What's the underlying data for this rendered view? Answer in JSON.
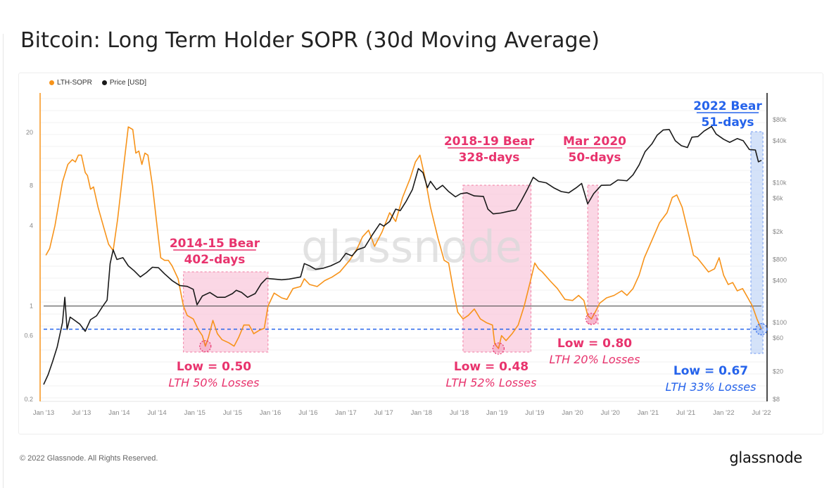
{
  "page": {
    "title": "Bitcoin: Long Term Holder SOPR (30d Moving Average)",
    "footer_copyright": "© 2022 Glassnode. All Rights Reserved.",
    "footer_logo": "glassnode",
    "watermark": "glassnode"
  },
  "colors": {
    "sopr": "#f7931a",
    "price": "#1a1a1a",
    "bear_pink": "#e8336d",
    "bear_blue": "#2563eb",
    "pink_fill": "#f9c6da",
    "blue_fill": "#c6d8f7"
  },
  "chart_data": {
    "type": "line",
    "title": "Bitcoin: Long Term Holder SOPR (30d Moving Average)",
    "legend": [
      {
        "name": "LTH-SOPR",
        "color": "#f7931a"
      },
      {
        "name": "Price [USD]",
        "color": "#1a1a1a"
      }
    ],
    "legend_position": "top-left",
    "x_ticks": [
      "Jan '13",
      "Jul '13",
      "Jan '14",
      "Jul '14",
      "Jan '15",
      "Jul '15",
      "Jan '16",
      "Jul '16",
      "Jan '17",
      "Jul '17",
      "Jan '18",
      "Jul '18",
      "Jan '19",
      "Jul '19",
      "Jan '20",
      "Jul '20",
      "Jan '21",
      "Jul '21",
      "Jan '22",
      "Jul '22"
    ],
    "x_range": [
      2013.0,
      2022.5
    ],
    "y_left": {
      "label": "LTH-SOPR",
      "scale": "log",
      "ticks": [
        "20",
        "8",
        "4",
        "1",
        "0.6",
        "0.2"
      ],
      "tick_values": [
        20,
        8,
        4,
        1,
        0.6,
        0.2
      ],
      "range": [
        0.2,
        20
      ]
    },
    "y_right": {
      "label": "Price [USD]",
      "scale": "log",
      "ticks": [
        "$80k",
        "$40k",
        "$10k",
        "$6k",
        "$2k",
        "$800",
        "$400",
        "$100",
        "$60",
        "$20",
        "$8"
      ],
      "tick_values": [
        80000,
        40000,
        10000,
        6000,
        2000,
        800,
        400,
        100,
        60,
        20,
        8
      ],
      "range": [
        8,
        80000
      ]
    },
    "grid": true,
    "reference_lines": [
      {
        "name": "break-even",
        "axis": "left",
        "value": 1.0,
        "style": "solid",
        "color": "#555555"
      },
      {
        "name": "current-low",
        "axis": "left",
        "value": 0.67,
        "style": "dashed",
        "color": "#2563eb"
      }
    ],
    "series": [
      {
        "name": "LTH-SOPR",
        "axis": "left",
        "points": [
          [
            2013.03,
            2.4
          ],
          [
            2013.08,
            2.7
          ],
          [
            2013.15,
            4.0
          ],
          [
            2013.25,
            8.5
          ],
          [
            2013.32,
            11.5
          ],
          [
            2013.38,
            12.5
          ],
          [
            2013.42,
            12.0
          ],
          [
            2013.46,
            13.5
          ],
          [
            2013.5,
            13.5
          ],
          [
            2013.55,
            10.0
          ],
          [
            2013.58,
            9.5
          ],
          [
            2013.62,
            7.5
          ],
          [
            2013.66,
            7.8
          ],
          [
            2013.72,
            5.5
          ],
          [
            2013.8,
            3.8
          ],
          [
            2013.86,
            2.9
          ],
          [
            2013.92,
            2.6
          ],
          [
            2013.98,
            4.5
          ],
          [
            2014.05,
            10.0
          ],
          [
            2014.12,
            22.0
          ],
          [
            2014.18,
            21.0
          ],
          [
            2014.22,
            14.0
          ],
          [
            2014.26,
            14.5
          ],
          [
            2014.3,
            11.5
          ],
          [
            2014.34,
            14.0
          ],
          [
            2014.38,
            13.5
          ],
          [
            2014.44,
            8.0
          ],
          [
            2014.5,
            4.0
          ],
          [
            2014.55,
            2.3
          ],
          [
            2014.6,
            2.2
          ],
          [
            2014.65,
            2.2
          ],
          [
            2014.7,
            2.0
          ],
          [
            2014.78,
            1.6
          ],
          [
            2014.85,
            1.0
          ],
          [
            2014.9,
            0.85
          ],
          [
            2014.98,
            0.8
          ],
          [
            2015.05,
            0.66
          ],
          [
            2015.1,
            0.6
          ],
          [
            2015.14,
            0.5
          ],
          [
            2015.18,
            0.58
          ],
          [
            2015.24,
            0.78
          ],
          [
            2015.3,
            0.62
          ],
          [
            2015.36,
            0.56
          ],
          [
            2015.45,
            0.53
          ],
          [
            2015.52,
            0.5
          ],
          [
            2015.58,
            0.58
          ],
          [
            2015.65,
            0.72
          ],
          [
            2015.72,
            0.72
          ],
          [
            2015.78,
            0.62
          ],
          [
            2015.86,
            0.66
          ],
          [
            2015.92,
            0.68
          ],
          [
            2015.97,
            1.0
          ],
          [
            2016.05,
            1.25
          ],
          [
            2016.15,
            1.15
          ],
          [
            2016.22,
            1.12
          ],
          [
            2016.3,
            1.35
          ],
          [
            2016.4,
            1.4
          ],
          [
            2016.45,
            1.6
          ],
          [
            2016.52,
            1.45
          ],
          [
            2016.62,
            1.4
          ],
          [
            2016.72,
            1.55
          ],
          [
            2016.82,
            1.65
          ],
          [
            2016.92,
            1.8
          ],
          [
            2017.05,
            2.2
          ],
          [
            2017.15,
            2.7
          ],
          [
            2017.22,
            3.3
          ],
          [
            2017.3,
            3.7
          ],
          [
            2017.38,
            2.8
          ],
          [
            2017.48,
            3.6
          ],
          [
            2017.58,
            5.0
          ],
          [
            2017.66,
            4.3
          ],
          [
            2017.75,
            6.5
          ],
          [
            2017.85,
            9.0
          ],
          [
            2017.92,
            12.0
          ],
          [
            2017.98,
            13.5
          ],
          [
            2018.05,
            9.0
          ],
          [
            2018.12,
            5.5
          ],
          [
            2018.22,
            3.2
          ],
          [
            2018.3,
            2.2
          ],
          [
            2018.36,
            2.1
          ],
          [
            2018.42,
            1.35
          ],
          [
            2018.48,
            0.9
          ],
          [
            2018.55,
            0.8
          ],
          [
            2018.62,
            0.85
          ],
          [
            2018.7,
            0.95
          ],
          [
            2018.78,
            0.8
          ],
          [
            2018.86,
            0.75
          ],
          [
            2018.94,
            0.72
          ],
          [
            2018.97,
            0.52
          ],
          [
            2019.02,
            0.48
          ],
          [
            2019.06,
            0.6
          ],
          [
            2019.12,
            0.55
          ],
          [
            2019.2,
            0.62
          ],
          [
            2019.28,
            0.72
          ],
          [
            2019.36,
            1.0
          ],
          [
            2019.45,
            1.6
          ],
          [
            2019.5,
            2.1
          ],
          [
            2019.55,
            1.9
          ],
          [
            2019.6,
            1.8
          ],
          [
            2019.7,
            1.55
          ],
          [
            2019.8,
            1.35
          ],
          [
            2019.9,
            1.12
          ],
          [
            2020.0,
            1.1
          ],
          [
            2020.08,
            1.2
          ],
          [
            2020.15,
            1.1
          ],
          [
            2020.2,
            0.85
          ],
          [
            2020.25,
            0.8
          ],
          [
            2020.3,
            0.9
          ],
          [
            2020.36,
            1.05
          ],
          [
            2020.45,
            1.15
          ],
          [
            2020.55,
            1.2
          ],
          [
            2020.65,
            1.3
          ],
          [
            2020.72,
            1.2
          ],
          [
            2020.8,
            1.35
          ],
          [
            2020.88,
            1.7
          ],
          [
            2020.95,
            2.3
          ],
          [
            2021.05,
            3.1
          ],
          [
            2021.15,
            4.2
          ],
          [
            2021.25,
            5.0
          ],
          [
            2021.32,
            6.5
          ],
          [
            2021.38,
            6.8
          ],
          [
            2021.45,
            5.5
          ],
          [
            2021.55,
            3.2
          ],
          [
            2021.6,
            2.4
          ],
          [
            2021.65,
            2.3
          ],
          [
            2021.72,
            2.05
          ],
          [
            2021.8,
            1.8
          ],
          [
            2021.88,
            1.9
          ],
          [
            2021.94,
            2.3
          ],
          [
            2022.0,
            1.7
          ],
          [
            2022.06,
            1.45
          ],
          [
            2022.12,
            1.5
          ],
          [
            2022.18,
            1.3
          ],
          [
            2022.25,
            1.35
          ],
          [
            2022.32,
            1.15
          ],
          [
            2022.38,
            1.0
          ],
          [
            2022.44,
            0.8
          ],
          [
            2022.5,
            0.67
          ]
        ]
      },
      {
        "name": "Price [USD]",
        "axis": "right",
        "points": [
          [
            2013.0,
            13
          ],
          [
            2013.06,
            18
          ],
          [
            2013.12,
            28
          ],
          [
            2013.18,
            45
          ],
          [
            2013.25,
            100
          ],
          [
            2013.28,
            230
          ],
          [
            2013.31,
            80
          ],
          [
            2013.35,
            120
          ],
          [
            2013.4,
            110
          ],
          [
            2013.48,
            95
          ],
          [
            2013.55,
            75
          ],
          [
            2013.62,
            110
          ],
          [
            2013.7,
            125
          ],
          [
            2013.78,
            170
          ],
          [
            2013.84,
            210
          ],
          [
            2013.88,
            700
          ],
          [
            2013.92,
            1100
          ],
          [
            2013.97,
            800
          ],
          [
            2014.05,
            850
          ],
          [
            2014.12,
            650
          ],
          [
            2014.2,
            550
          ],
          [
            2014.28,
            450
          ],
          [
            2014.36,
            520
          ],
          [
            2014.44,
            620
          ],
          [
            2014.52,
            610
          ],
          [
            2014.6,
            500
          ],
          [
            2014.7,
            400
          ],
          [
            2014.8,
            340
          ],
          [
            2014.9,
            330
          ],
          [
            2014.98,
            300
          ],
          [
            2015.03,
            180
          ],
          [
            2015.1,
            240
          ],
          [
            2015.2,
            270
          ],
          [
            2015.3,
            230
          ],
          [
            2015.4,
            230
          ],
          [
            2015.5,
            260
          ],
          [
            2015.55,
            290
          ],
          [
            2015.62,
            270
          ],
          [
            2015.7,
            230
          ],
          [
            2015.8,
            260
          ],
          [
            2015.88,
            360
          ],
          [
            2015.95,
            430
          ],
          [
            2016.05,
            420
          ],
          [
            2016.15,
            410
          ],
          [
            2016.25,
            420
          ],
          [
            2016.4,
            450
          ],
          [
            2016.45,
            700
          ],
          [
            2016.52,
            650
          ],
          [
            2016.6,
            580
          ],
          [
            2016.7,
            600
          ],
          [
            2016.8,
            650
          ],
          [
            2016.92,
            750
          ],
          [
            2017.0,
            980
          ],
          [
            2017.08,
            900
          ],
          [
            2017.15,
            1100
          ],
          [
            2017.25,
            1200
          ],
          [
            2017.35,
            1800
          ],
          [
            2017.45,
            2600
          ],
          [
            2017.5,
            2400
          ],
          [
            2017.58,
            2800
          ],
          [
            2017.66,
            4200
          ],
          [
            2017.72,
            4000
          ],
          [
            2017.8,
            5500
          ],
          [
            2017.88,
            8000
          ],
          [
            2017.96,
            16000
          ],
          [
            2018.02,
            14000
          ],
          [
            2018.08,
            8500
          ],
          [
            2018.12,
            10500
          ],
          [
            2018.2,
            8000
          ],
          [
            2018.28,
            9200
          ],
          [
            2018.36,
            7500
          ],
          [
            2018.45,
            6300
          ],
          [
            2018.52,
            7000
          ],
          [
            2018.6,
            7200
          ],
          [
            2018.7,
            6500
          ],
          [
            2018.82,
            6400
          ],
          [
            2018.88,
            4200
          ],
          [
            2018.95,
            3600
          ],
          [
            2019.05,
            3700
          ],
          [
            2019.15,
            3900
          ],
          [
            2019.25,
            4100
          ],
          [
            2019.32,
            5500
          ],
          [
            2019.4,
            8000
          ],
          [
            2019.48,
            12000
          ],
          [
            2019.55,
            10500
          ],
          [
            2019.65,
            10000
          ],
          [
            2019.75,
            8500
          ],
          [
            2019.85,
            7500
          ],
          [
            2019.95,
            7200
          ],
          [
            2020.05,
            8500
          ],
          [
            2020.12,
            9800
          ],
          [
            2020.2,
            5000
          ],
          [
            2020.28,
            7000
          ],
          [
            2020.38,
            9200
          ],
          [
            2020.5,
            9300
          ],
          [
            2020.6,
            11000
          ],
          [
            2020.72,
            10700
          ],
          [
            2020.8,
            13000
          ],
          [
            2020.88,
            18000
          ],
          [
            2020.96,
            28000
          ],
          [
            2021.05,
            36000
          ],
          [
            2021.12,
            48000
          ],
          [
            2021.2,
            57000
          ],
          [
            2021.28,
            58000
          ],
          [
            2021.36,
            40000
          ],
          [
            2021.44,
            34000
          ],
          [
            2021.52,
            32000
          ],
          [
            2021.58,
            45000
          ],
          [
            2021.66,
            46000
          ],
          [
            2021.74,
            55000
          ],
          [
            2021.84,
            64000
          ],
          [
            2021.9,
            50000
          ],
          [
            2022.0,
            42000
          ],
          [
            2022.08,
            38000
          ],
          [
            2022.18,
            43000
          ],
          [
            2022.26,
            40000
          ],
          [
            2022.34,
            30000
          ],
          [
            2022.42,
            29500
          ],
          [
            2022.46,
            20000
          ],
          [
            2022.5,
            21000
          ]
        ]
      }
    ],
    "regions": [
      {
        "name": "2014-15 Bear",
        "x_start": 2014.85,
        "x_end": 2015.97,
        "fill": "pink",
        "label_line1": "2014-15 Bear",
        "label_line2": "402-days",
        "low_x": 2015.14,
        "low_value": 0.5,
        "low_label": "Low = 0.50",
        "loss_label": "LTH 50% Losses"
      },
      {
        "name": "2018-19 Bear",
        "x_start": 2018.55,
        "x_end": 2019.45,
        "fill": "pink",
        "label_line1": "2018-19 Bear",
        "label_line2": "328-days",
        "low_x": 2019.02,
        "low_value": 0.48,
        "low_label": "Low = 0.48",
        "loss_label": "LTH 52% Losses"
      },
      {
        "name": "Mar 2020",
        "x_start": 2020.2,
        "x_end": 2020.34,
        "fill": "pink",
        "label_line1": "Mar 2020",
        "label_line2": "50-days",
        "low_x": 2020.25,
        "low_value": 0.8,
        "low_label": "Low = 0.80",
        "loss_label": "LTH 20% Losses"
      },
      {
        "name": "2022 Bear",
        "x_start": 2022.36,
        "x_end": 2022.52,
        "fill": "blue",
        "label_line1": "2022 Bear",
        "label_line2": "51-days",
        "low_x": 2022.5,
        "low_value": 0.67,
        "low_label": "Low = 0.67",
        "loss_label": "LTH 33% Losses"
      }
    ]
  }
}
